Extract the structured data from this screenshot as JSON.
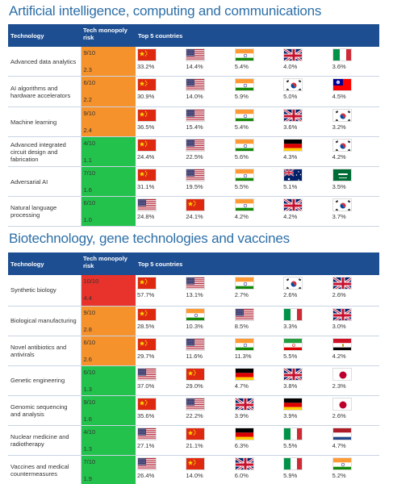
{
  "colors": {
    "title": "#2d6fa7",
    "header_bg": "#1d4e91",
    "risk_orange": "#f6922b",
    "risk_green": "#23c24c",
    "risk_red": "#e7332b"
  },
  "sections": [
    {
      "title": "Artificial intelligence, computing and communications",
      "headers": {
        "technology": "Technology",
        "risk": "Tech monopoly risk",
        "top5": "Top 5 countries"
      },
      "rows": [
        {
          "tech": "Advanced data analytics",
          "score": "9/10",
          "index": "2.3",
          "level": "orange",
          "countries": [
            {
              "flag": "china-flag",
              "pct": "33.2%"
            },
            {
              "flag": "usa-flag",
              "pct": "14.4%"
            },
            {
              "flag": "india-flag",
              "pct": "5.4%"
            },
            {
              "flag": "uk-flag",
              "pct": "4.0%"
            },
            {
              "flag": "italy-flag",
              "pct": "3.6%"
            }
          ]
        },
        {
          "tech": "AI algorithms and hardware accelerators",
          "score": "6/10",
          "index": "2.2",
          "level": "orange",
          "countries": [
            {
              "flag": "china-flag",
              "pct": "30.9%"
            },
            {
              "flag": "usa-flag",
              "pct": "14.0%"
            },
            {
              "flag": "india-flag",
              "pct": "5.9%"
            },
            {
              "flag": "south-korea-flag",
              "pct": "5.0%"
            },
            {
              "flag": "taiwan-flag",
              "pct": "4.5%"
            }
          ]
        },
        {
          "tech": "Machine learning",
          "score": "9/10",
          "index": "2.4",
          "level": "orange",
          "countries": [
            {
              "flag": "china-flag",
              "pct": "36.5%"
            },
            {
              "flag": "usa-flag",
              "pct": "15.4%"
            },
            {
              "flag": "india-flag",
              "pct": "5.4%"
            },
            {
              "flag": "uk-flag",
              "pct": "3.6%"
            },
            {
              "flag": "south-korea-flag",
              "pct": "3.2%"
            }
          ]
        },
        {
          "tech": "Advanced integrated circuit design and fabrication",
          "score": "4/10",
          "index": "1.1",
          "level": "green",
          "countries": [
            {
              "flag": "china-flag",
              "pct": "24.4%"
            },
            {
              "flag": "usa-flag",
              "pct": "22.5%"
            },
            {
              "flag": "india-flag",
              "pct": "5.6%"
            },
            {
              "flag": "germany-flag",
              "pct": "4.3%"
            },
            {
              "flag": "south-korea-flag",
              "pct": "4.2%"
            }
          ]
        },
        {
          "tech": "Adversarial AI",
          "score": "7/10",
          "index": "1.6",
          "level": "green",
          "countries": [
            {
              "flag": "china-flag",
              "pct": "31.1%"
            },
            {
              "flag": "usa-flag",
              "pct": "19.5%"
            },
            {
              "flag": "india-flag",
              "pct": "5.5%"
            },
            {
              "flag": "australia-flag",
              "pct": "5.1%"
            },
            {
              "flag": "saudi-arabia-flag",
              "pct": "3.5%"
            }
          ]
        },
        {
          "tech": "Natural language processing",
          "score": "6/10",
          "index": "1.0",
          "level": "green",
          "countries": [
            {
              "flag": "usa-flag",
              "pct": "24.8%"
            },
            {
              "flag": "china-flag",
              "pct": "24.1%"
            },
            {
              "flag": "india-flag",
              "pct": "4.2%"
            },
            {
              "flag": "uk-flag",
              "pct": "4.2%"
            },
            {
              "flag": "south-korea-flag",
              "pct": "3.7%"
            }
          ]
        }
      ]
    },
    {
      "title": "Biotechnology, gene technologies and vaccines",
      "headers": {
        "technology": "Technology",
        "risk": "Tech monopoly risk",
        "top5": "Top 5 countries"
      },
      "rows": [
        {
          "tech": "Synthetic biology",
          "score": "10/10",
          "index": "4.4",
          "level": "red",
          "countries": [
            {
              "flag": "china-flag",
              "pct": "57.7%"
            },
            {
              "flag": "usa-flag",
              "pct": "13.1%"
            },
            {
              "flag": "india-flag",
              "pct": "2.7%"
            },
            {
              "flag": "south-korea-flag",
              "pct": "2.6%"
            },
            {
              "flag": "uk-flag",
              "pct": "2.6%"
            }
          ]
        },
        {
          "tech": "Biological manufacturing",
          "score": "9/10",
          "index": "2.8",
          "level": "orange",
          "countries": [
            {
              "flag": "china-flag",
              "pct": "28.5%"
            },
            {
              "flag": "india-flag",
              "pct": "10.3%"
            },
            {
              "flag": "usa-flag",
              "pct": "8.5%"
            },
            {
              "flag": "italy-flag",
              "pct": "3.3%"
            },
            {
              "flag": "uk-flag",
              "pct": "3.0%"
            }
          ]
        },
        {
          "tech": "Novel antibiotics and antivirals",
          "score": "6/10",
          "index": "2.6",
          "level": "orange",
          "countries": [
            {
              "flag": "china-flag",
              "pct": "29.7%"
            },
            {
              "flag": "usa-flag",
              "pct": "11.6%"
            },
            {
              "flag": "india-flag",
              "pct": "11.3%"
            },
            {
              "flag": "iran-flag",
              "pct": "5.5%"
            },
            {
              "flag": "egypt-flag",
              "pct": "4.2%"
            }
          ]
        },
        {
          "tech": "Genetic engineering",
          "score": "6/10",
          "index": "1.3",
          "level": "green",
          "countries": [
            {
              "flag": "usa-flag",
              "pct": "37.0%"
            },
            {
              "flag": "china-flag",
              "pct": "29.0%"
            },
            {
              "flag": "germany-flag",
              "pct": "4.7%"
            },
            {
              "flag": "uk-flag",
              "pct": "3.8%"
            },
            {
              "flag": "japan-flag",
              "pct": "2.3%"
            }
          ]
        },
        {
          "tech": "Genomic sequencing and analysis",
          "score": "9/10",
          "index": "1.6",
          "level": "green",
          "countries": [
            {
              "flag": "china-flag",
              "pct": "35.6%"
            },
            {
              "flag": "usa-flag",
              "pct": "22.2%"
            },
            {
              "flag": "uk-flag",
              "pct": "3.9%"
            },
            {
              "flag": "germany-flag",
              "pct": "3.9%"
            },
            {
              "flag": "japan-flag",
              "pct": "2.6%"
            }
          ]
        },
        {
          "tech": "Nuclear medicine and radiotherapy",
          "score": "4/10",
          "index": "1.3",
          "level": "green",
          "countries": [
            {
              "flag": "usa-flag",
              "pct": "27.1%"
            },
            {
              "flag": "china-flag",
              "pct": "21.1%"
            },
            {
              "flag": "germany-flag",
              "pct": "6.3%"
            },
            {
              "flag": "italy-flag",
              "pct": "5.5%"
            },
            {
              "flag": "netherlands-flag",
              "pct": "4.7%"
            }
          ]
        },
        {
          "tech": "Vaccines and medical countermeasures",
          "score": "7/10",
          "index": "1.9",
          "level": "green",
          "countries": [
            {
              "flag": "usa-flag",
              "pct": "26.4%"
            },
            {
              "flag": "china-flag",
              "pct": "14.0%"
            },
            {
              "flag": "uk-flag",
              "pct": "6.0%"
            },
            {
              "flag": "italy-flag",
              "pct": "5.9%"
            },
            {
              "flag": "india-flag",
              "pct": "5.2%"
            }
          ]
        }
      ]
    }
  ]
}
